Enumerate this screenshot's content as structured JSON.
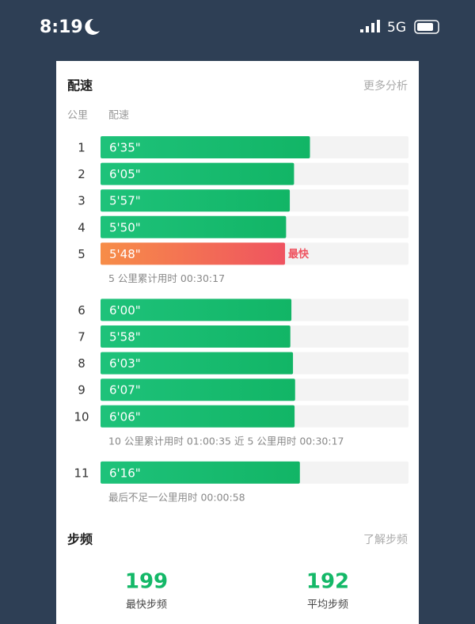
{
  "status_bar": {
    "time": "8:19",
    "network": "5G"
  },
  "pace": {
    "title": "配速",
    "more": "更多分析",
    "headers": [
      "公里",
      "配速"
    ],
    "fastest_label": "最快",
    "groups": [
      {
        "km": [
          1,
          2,
          3,
          4,
          5
        ],
        "values": [
          395,
          365,
          357,
          350,
          348
        ],
        "value_labels": [
          "6'35\"",
          "6'05\"",
          "5'57\"",
          "5'50\"",
          "5'48\""
        ],
        "summary": "5 公里累计用时 00:30:17"
      },
      {
        "km": [
          6,
          7,
          8,
          9,
          10
        ],
        "values": [
          360,
          358,
          363,
          367,
          366
        ],
        "value_labels": [
          "6'00\"",
          "5'58\"",
          "6'03\"",
          "6'07\"",
          "6'06\""
        ],
        "summary": "10 公里累计用时 01:00:35   近 5 公里用时 00:30:17"
      },
      {
        "km": [
          11
        ],
        "values": [
          376
        ],
        "value_labels": [
          "6'16\""
        ],
        "summary": "最后不足一公里用时 00:00:58"
      }
    ]
  },
  "cadence": {
    "title": "步频",
    "more": "了解步频",
    "stats": [
      {
        "value": 199,
        "label": "最快步频"
      },
      {
        "value": 192,
        "label": "平均步频"
      }
    ]
  }
}
